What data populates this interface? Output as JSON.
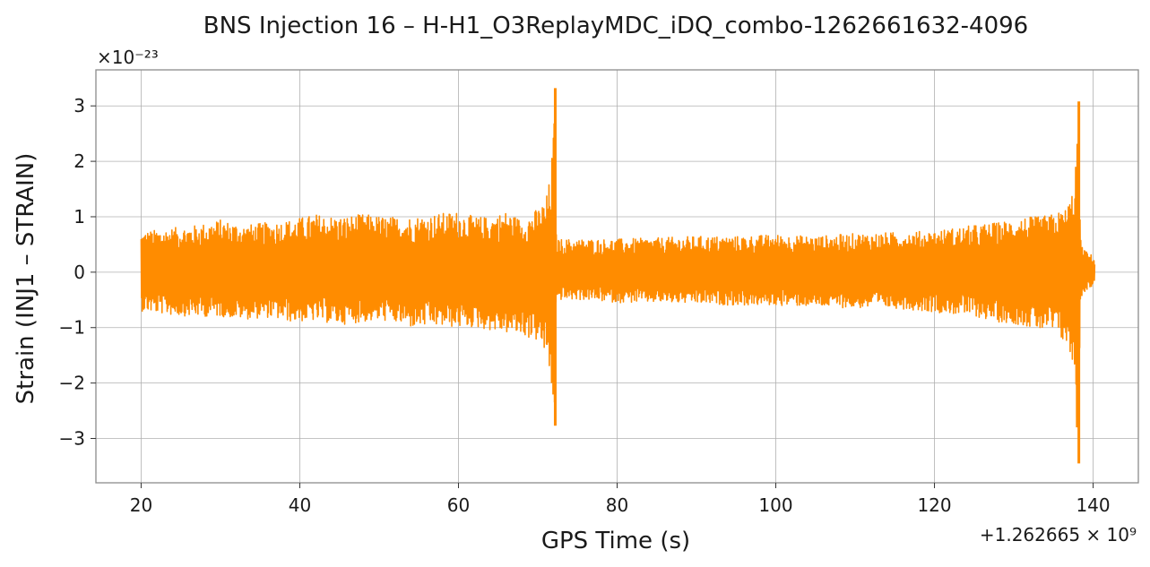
{
  "chart_data": {
    "type": "line",
    "title": "BNS Injection 16 – H-H1_O3ReplayMDC_iDQ_combo-1262661632-4096",
    "xlabel": "GPS Time (s)",
    "ylabel": "Strain (INJ1 – STRAIN)",
    "y_multiplier_label": "×10⁻²³",
    "x_offset_label": "+1.262665 × 10⁹",
    "xlim": [
      14.3,
      145.7
    ],
    "ylim": [
      -3.8,
      3.65
    ],
    "xticks": [
      20,
      40,
      60,
      80,
      100,
      120,
      140
    ],
    "xtick_labels": [
      "20",
      "40",
      "60",
      "80",
      "100",
      "120",
      "140"
    ],
    "yticks": [
      3,
      2,
      1,
      0,
      -1,
      -2,
      -3
    ],
    "ytick_labels": [
      "3",
      "2",
      "1",
      "0",
      "−1",
      "−2",
      "−3"
    ],
    "grid": true,
    "legend": "none",
    "series": [
      {
        "color": "#ff8c00",
        "x_range": [
          20.0,
          140.2
        ],
        "envelope": {
          "x": [
            20.0,
            21,
            24,
            27,
            30,
            33,
            36,
            39,
            42,
            45,
            48,
            51,
            54,
            57,
            60,
            62,
            64,
            66,
            68,
            70,
            71,
            71.6,
            72.0,
            72.2,
            72.3,
            72.6,
            73.5,
            76,
            80,
            85,
            90,
            95,
            100,
            105,
            110,
            115,
            120,
            125,
            128,
            131,
            133,
            135,
            136.5,
            137.5,
            138.0,
            138.2,
            138.4,
            138.7,
            139.3,
            140.0,
            140.2
          ],
          "upper": [
            0.72,
            0.75,
            0.8,
            0.85,
            0.95,
            0.85,
            0.9,
            0.95,
            1.05,
            1.0,
            1.05,
            1.0,
            1.0,
            1.05,
            1.1,
            1.0,
            1.0,
            1.1,
            0.95,
            1.15,
            1.3,
            1.75,
            2.6,
            3.32,
            0.7,
            0.6,
            0.6,
            0.6,
            0.6,
            0.62,
            0.65,
            0.65,
            0.68,
            0.65,
            0.7,
            0.72,
            0.75,
            0.85,
            0.9,
            1.0,
            1.0,
            1.05,
            1.15,
            1.5,
            2.5,
            3.08,
            0.6,
            0.45,
            0.35,
            0.3,
            0.2
          ],
          "lower": [
            -0.7,
            -0.72,
            -0.78,
            -0.8,
            -0.8,
            -0.85,
            -0.82,
            -0.9,
            -0.88,
            -0.95,
            -0.9,
            -0.88,
            -1.0,
            -0.98,
            -1.0,
            -1.0,
            -1.05,
            -1.1,
            -1.15,
            -1.25,
            -1.5,
            -2.0,
            -2.4,
            -2.77,
            -0.55,
            -0.5,
            -0.5,
            -0.5,
            -0.55,
            -0.55,
            -0.57,
            -0.6,
            -0.6,
            -0.62,
            -0.65,
            -0.65,
            -0.72,
            -0.8,
            -0.9,
            -0.95,
            -1.05,
            -1.1,
            -1.3,
            -1.7,
            -2.8,
            -3.45,
            -0.5,
            -0.4,
            -0.3,
            -0.25,
            -0.15
          ]
        }
      }
    ]
  }
}
